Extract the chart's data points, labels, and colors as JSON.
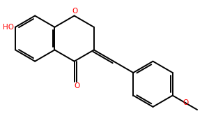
{
  "bg": "#ffffff",
  "bc": "#000000",
  "hc": "#ff0000",
  "lw": 1.4,
  "figsize": [
    3.0,
    1.86
  ],
  "dpi": 100,
  "S": 0.3,
  "atoms": {
    "HO": {
      "text": "HO",
      "ha": "right",
      "va": "center"
    },
    "O_ring": {
      "text": "O",
      "ha": "center",
      "va": "center"
    },
    "O_keto": {
      "text": "O",
      "ha": "center",
      "va": "top"
    },
    "O_meo": {
      "text": "O",
      "ha": "center",
      "va": "center"
    }
  },
  "fs": 7.5
}
